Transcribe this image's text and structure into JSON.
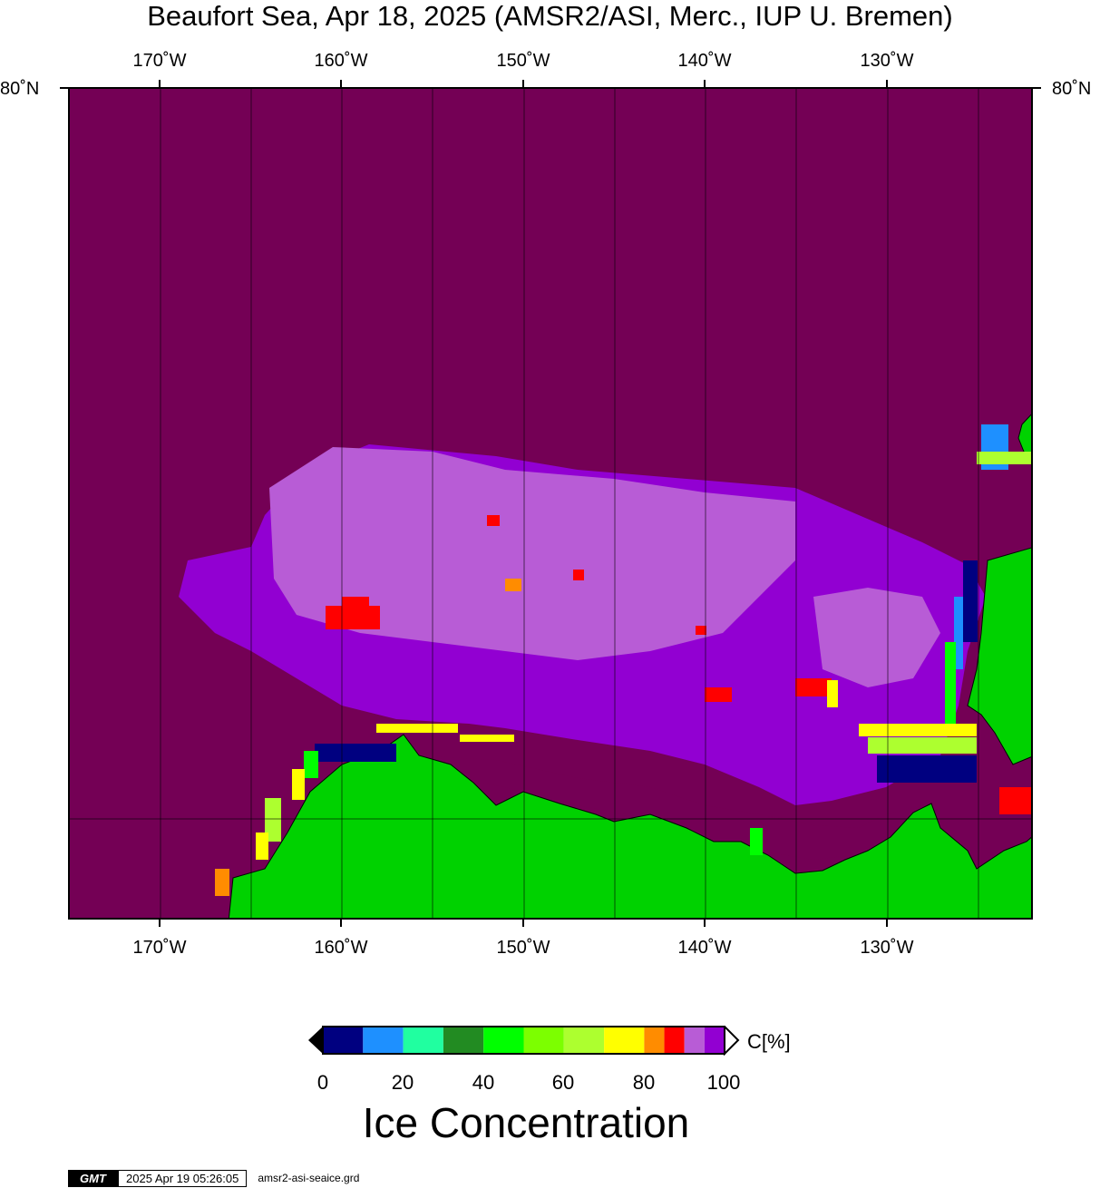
{
  "title": "Beaufort Sea, Apr 18, 2025 (AMSR2/ASI, Merc., IUP U. Bremen)",
  "map": {
    "lon_labels": [
      "170˚W",
      "160˚W",
      "150˚W",
      "140˚W",
      "130˚W"
    ],
    "lat_label": "80˚N",
    "colors": {
      "ocean_full_ice": "#740055",
      "land": "#00d200",
      "ice_90": "#b85cd6",
      "ice_95": "#9200d2"
    }
  },
  "colorbar": {
    "label": "C[%]",
    "ticks": [
      "0",
      "20",
      "40",
      "60",
      "80",
      "100"
    ],
    "colors": [
      "#000080",
      "#1e90ff",
      "#20ffa0",
      "#228b22",
      "#00ff00",
      "#7cff00",
      "#adff2f",
      "#ffff00",
      "#ff8c00",
      "#ff0000",
      "#b85cd6",
      "#9200d2"
    ]
  },
  "subtitle": "Ice Concentration",
  "footer": {
    "logo": "GMT",
    "timestamp": "2025 Apr 19 05:26:05",
    "grid_file": "amsr2-asi-seaice.grd"
  }
}
